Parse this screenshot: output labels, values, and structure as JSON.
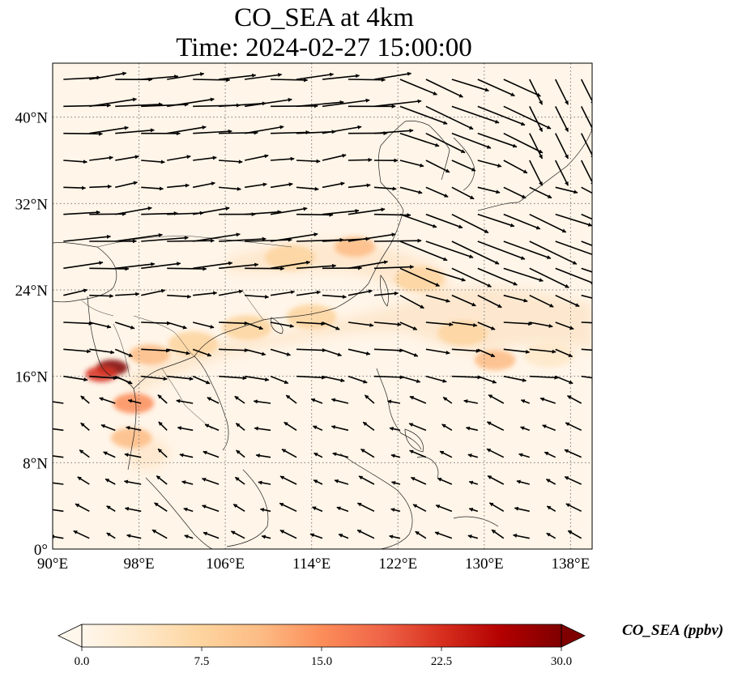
{
  "title_line1": "CO_SEA at 4km",
  "title_line2": "Time: 2024-02-27 15:00:00",
  "map": {
    "extent": {
      "lon_min": 90,
      "lon_max": 140,
      "lat_min": 0,
      "lat_max": 45
    },
    "lon_ticks": [
      {
        "value": 90,
        "label": "90°E"
      },
      {
        "value": 98,
        "label": "98°E"
      },
      {
        "value": 106,
        "label": "106°E"
      },
      {
        "value": 114,
        "label": "114°E"
      },
      {
        "value": 122,
        "label": "122°E"
      },
      {
        "value": 130,
        "label": "130°E"
      },
      {
        "value": 138,
        "label": "138°E"
      }
    ],
    "lat_ticks": [
      {
        "value": 0,
        "label": "0°"
      },
      {
        "value": 8,
        "label": "8°N"
      },
      {
        "value": 16,
        "label": "16°N"
      },
      {
        "value": 24,
        "label": "24°N"
      },
      {
        "value": 32,
        "label": "32°N"
      },
      {
        "value": 40,
        "label": "40°N"
      }
    ],
    "gridlines": "dotted",
    "colormap": "OrRd",
    "concentration_hotspots": [
      {
        "lon": 95.5,
        "lat": 16.8,
        "value": 30
      },
      {
        "lon": 94.5,
        "lat": 16.2,
        "value": 22
      },
      {
        "lon": 97.5,
        "lat": 13.5,
        "value": 14
      },
      {
        "lon": 97.3,
        "lat": 10.3,
        "value": 12
      },
      {
        "lon": 99,
        "lat": 18,
        "value": 10
      },
      {
        "lon": 103,
        "lat": 19,
        "value": 8
      },
      {
        "lon": 108,
        "lat": 20.5,
        "value": 7
      },
      {
        "lon": 114,
        "lat": 21.5,
        "value": 6
      },
      {
        "lon": 118,
        "lat": 28,
        "value": 10
      },
      {
        "lon": 112,
        "lat": 27,
        "value": 6
      },
      {
        "lon": 124,
        "lat": 25,
        "value": 8
      },
      {
        "lon": 128,
        "lat": 20,
        "value": 6
      },
      {
        "lon": 131,
        "lat": 17.5,
        "value": 10
      },
      {
        "lon": 136,
        "lat": 18,
        "value": 5
      }
    ],
    "wind_arrows": "regular grid of black wind vectors, strong westerlies north of 20°N, weak easterlies/northeasterlies south of 20°N"
  },
  "colorbar": {
    "min": 0,
    "max": 30,
    "extend": "both",
    "ticks": [
      "0.0",
      "7.5",
      "15.0",
      "22.5",
      "30.0"
    ],
    "label": "CO_SEA (ppbv)",
    "colors": [
      "#fff7ec",
      "#fee8c8",
      "#fdd49e",
      "#fdbb84",
      "#fc8d59",
      "#ef6548",
      "#d7301f",
      "#b30000",
      "#7f0000"
    ]
  }
}
